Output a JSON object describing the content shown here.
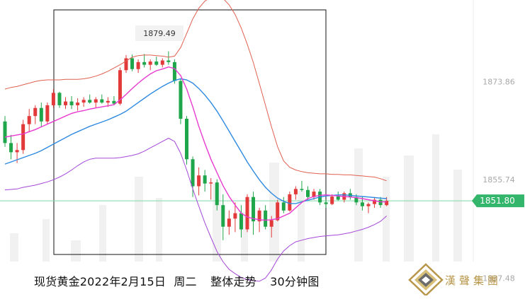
{
  "chart_data": {
    "type": "candlestick",
    "title": "",
    "xlabel": "",
    "ylabel": "",
    "ylim": [
      1834.0,
      1889.0
    ],
    "price_ticks": [
      1873.86,
      1855.74,
      1837.48
    ],
    "peak_label": 1879.49,
    "last_price": 1851.8,
    "colors": {
      "up": "#e23a3a",
      "down": "#1fa54a",
      "bollinger": "#e06050",
      "bollinger_lower": "#a448d8",
      "ma_fast": "#e83ad0",
      "ma_slow": "#2f8ae0",
      "last_price_line": "#7fd9a6",
      "last_price_box": "#33b56b",
      "highlight_box": "#111111"
    },
    "candles": [
      [
        1866.5,
        1867.5,
        1861.8,
        1862.5
      ],
      [
        1862.5,
        1864.0,
        1859.5,
        1860.8
      ],
      [
        1860.8,
        1862.5,
        1858.8,
        1861.2
      ],
      [
        1861.2,
        1866.8,
        1860.5,
        1866.0
      ],
      [
        1866.0,
        1868.8,
        1864.5,
        1867.5
      ],
      [
        1867.5,
        1869.5,
        1866.0,
        1869.0
      ],
      [
        1869.0,
        1870.0,
        1865.5,
        1866.5
      ],
      [
        1866.5,
        1870.0,
        1866.0,
        1869.5
      ],
      [
        1869.5,
        1872.5,
        1869.0,
        1871.8
      ],
      [
        1871.8,
        1872.0,
        1869.0,
        1869.5
      ],
      [
        1869.5,
        1871.0,
        1868.8,
        1870.2
      ],
      [
        1870.2,
        1871.2,
        1868.8,
        1869.5
      ],
      [
        1869.5,
        1870.8,
        1868.5,
        1870.0
      ],
      [
        1870.0,
        1871.0,
        1869.2,
        1870.5
      ],
      [
        1870.5,
        1871.5,
        1869.8,
        1870.0
      ],
      [
        1870.0,
        1871.0,
        1869.0,
        1870.6
      ],
      [
        1870.6,
        1871.5,
        1869.8,
        1870.0
      ],
      [
        1870.0,
        1871.0,
        1869.2,
        1870.3
      ],
      [
        1870.3,
        1871.2,
        1869.5,
        1869.8
      ],
      [
        1869.8,
        1876.5,
        1869.5,
        1876.0
      ],
      [
        1876.0,
        1878.8,
        1875.5,
        1878.2
      ],
      [
        1878.2,
        1878.9,
        1875.8,
        1876.2
      ],
      [
        1876.2,
        1878.0,
        1875.5,
        1877.5
      ],
      [
        1877.5,
        1879.0,
        1876.5,
        1877.0
      ],
      [
        1877.0,
        1878.0,
        1876.0,
        1877.6
      ],
      [
        1877.6,
        1878.5,
        1876.8,
        1877.0
      ],
      [
        1877.0,
        1878.2,
        1876.5,
        1877.8
      ],
      [
        1877.8,
        1879.49,
        1877.0,
        1877.5
      ],
      [
        1877.5,
        1878.0,
        1873.5,
        1874.0
      ],
      [
        1874.0,
        1874.5,
        1866.0,
        1867.0
      ],
      [
        1867.0,
        1867.5,
        1858.5,
        1859.5
      ],
      [
        1859.5,
        1860.0,
        1852.5,
        1854.5
      ],
      [
        1854.5,
        1858.0,
        1852.8,
        1856.5
      ],
      [
        1856.5,
        1857.5,
        1853.5,
        1855.0
      ],
      [
        1855.0,
        1856.0,
        1852.0,
        1855.2
      ],
      [
        1855.2,
        1855.8,
        1850.0,
        1851.0
      ],
      [
        1851.0,
        1853.0,
        1844.5,
        1847.0
      ],
      [
        1847.0,
        1850.0,
        1845.5,
        1848.5
      ],
      [
        1848.5,
        1851.5,
        1846.0,
        1849.5
      ],
      [
        1849.5,
        1851.0,
        1845.0,
        1846.5
      ],
      [
        1846.5,
        1853.0,
        1846.0,
        1852.5
      ],
      [
        1852.5,
        1853.5,
        1845.5,
        1848.0
      ],
      [
        1848.0,
        1850.5,
        1846.0,
        1850.0
      ],
      [
        1850.0,
        1851.0,
        1846.5,
        1847.0
      ],
      [
        1847.0,
        1849.0,
        1845.0,
        1848.2
      ],
      [
        1848.2,
        1852.0,
        1848.0,
        1851.5
      ],
      [
        1851.5,
        1852.5,
        1849.5,
        1850.0
      ],
      [
        1850.0,
        1853.5,
        1849.8,
        1853.0
      ],
      [
        1853.0,
        1854.5,
        1852.0,
        1854.0
      ],
      [
        1854.0,
        1855.5,
        1853.5,
        1853.8
      ],
      [
        1853.8,
        1854.5,
        1852.0,
        1852.5
      ],
      [
        1852.5,
        1854.0,
        1852.0,
        1853.5
      ],
      [
        1853.5,
        1854.0,
        1851.0,
        1851.5
      ],
      [
        1851.5,
        1852.0,
        1850.5,
        1851.2
      ],
      [
        1851.2,
        1853.0,
        1851.0,
        1852.6
      ],
      [
        1852.6,
        1853.5,
        1851.8,
        1852.0
      ],
      [
        1852.0,
        1853.5,
        1851.5,
        1853.2
      ],
      [
        1853.2,
        1854.0,
        1852.0,
        1852.5
      ],
      [
        1852.5,
        1853.0,
        1851.0,
        1851.5
      ],
      [
        1851.5,
        1852.5,
        1850.0,
        1850.8
      ],
      [
        1850.8,
        1851.5,
        1849.5,
        1851.2
      ],
      [
        1851.2,
        1852.5,
        1850.5,
        1852.0
      ],
      [
        1852.0,
        1852.5,
        1850.5,
        1851.0
      ],
      [
        1851.0,
        1852.5,
        1850.8,
        1851.8
      ]
    ],
    "bollinger_upper": [
      1872.5,
      1872.8,
      1873.0,
      1873.3,
      1873.6,
      1873.9,
      1874.1,
      1874.2,
      1874.2,
      1874.2,
      1874.3,
      1874.3,
      1874.3,
      1874.4,
      1874.6,
      1874.9,
      1875.3,
      1875.8,
      1876.4,
      1877.0,
      1877.7,
      1878.4,
      1878.7,
      1878.8,
      1878.8,
      1878.7,
      1878.6,
      1878.4,
      1878.6,
      1880.2,
      1882.8,
      1885.5,
      1887.5,
      1888.8,
      1889.5,
      1889.8,
      1889.3,
      1888.1,
      1886.3,
      1883.8,
      1880.8,
      1877.4,
      1873.5,
      1869.5,
      1865.5,
      1861.8,
      1859.2,
      1858.0,
      1857.5,
      1857.2,
      1857.0,
      1856.9,
      1856.8,
      1856.8,
      1856.7,
      1856.7,
      1856.6,
      1856.6,
      1856.5,
      1856.4,
      1856.3,
      1856.2,
      1855.9,
      1855.5
    ],
    "bollinger_lower": [
      1853.8,
      1853.9,
      1854.0,
      1854.3,
      1854.5,
      1854.7,
      1855.0,
      1855.3,
      1855.7,
      1856.2,
      1856.8,
      1857.5,
      1858.3,
      1859.0,
      1859.5,
      1859.7,
      1859.7,
      1859.7,
      1859.7,
      1859.8,
      1860.0,
      1860.2,
      1860.5,
      1861.0,
      1861.6,
      1862.2,
      1862.8,
      1863.4,
      1862.8,
      1860.6,
      1857.5,
      1854.0,
      1850.8,
      1847.7,
      1845.0,
      1842.4,
      1840.5,
      1839.1,
      1838.3,
      1837.6,
      1837.2,
      1837.0,
      1836.9,
      1837.5,
      1839.0,
      1841.0,
      1842.5,
      1843.5,
      1844.2,
      1844.5,
      1844.8,
      1845.0,
      1845.2,
      1845.3,
      1845.4,
      1845.5,
      1845.7,
      1845.9,
      1846.2,
      1846.5,
      1846.9,
      1847.4,
      1848.0,
      1849.0
    ],
    "ma_fast": [
      1863.6,
      1863.8,
      1864.0,
      1864.2,
      1864.6,
      1865.0,
      1865.5,
      1866.0,
      1866.5,
      1867.0,
      1867.5,
      1868.0,
      1868.3,
      1868.5,
      1868.8,
      1869.0,
      1869.2,
      1869.4,
      1869.6,
      1870.5,
      1871.5,
      1872.6,
      1873.6,
      1874.5,
      1875.3,
      1875.9,
      1876.2,
      1876.6,
      1876.3,
      1875.0,
      1872.5,
      1869.2,
      1865.6,
      1862.4,
      1859.5,
      1857.0,
      1854.6,
      1852.6,
      1851.0,
      1849.5,
      1848.8,
      1848.5,
      1848.3,
      1848.2,
      1848.3,
      1848.5,
      1849.0,
      1849.5,
      1850.5,
      1851.5,
      1852.2,
      1852.6,
      1852.8,
      1852.9,
      1852.8,
      1852.7,
      1852.6,
      1852.5,
      1852.4,
      1852.2,
      1852.0,
      1851.8,
      1851.6,
      1851.6
    ],
    "ma_slow": [
      1858.6,
      1859.0,
      1859.4,
      1859.8,
      1860.2,
      1860.6,
      1861.1,
      1861.7,
      1862.3,
      1862.9,
      1863.5,
      1864.1,
      1864.6,
      1865.1,
      1865.6,
      1866.0,
      1866.4,
      1866.8,
      1867.3,
      1867.8,
      1868.4,
      1869.2,
      1870.0,
      1870.8,
      1871.6,
      1872.3,
      1873.0,
      1873.6,
      1874.1,
      1874.4,
      1874.2,
      1873.6,
      1872.6,
      1871.4,
      1870.0,
      1868.4,
      1866.6,
      1864.7,
      1862.8,
      1860.9,
      1859.0,
      1857.3,
      1855.7,
      1854.3,
      1853.2,
      1852.3,
      1851.7,
      1851.3,
      1851.3,
      1851.6,
      1851.9,
      1852.2,
      1852.5,
      1852.7,
      1852.8,
      1852.9,
      1852.9,
      1852.8,
      1852.7,
      1852.6,
      1852.5,
      1852.4,
      1852.3,
      1852.2
    ]
  },
  "caption": {
    "title": "现货黄金2022年2月15日",
    "weekday": "周二",
    "subject": "整体走势",
    "timeframe": "30分钟图"
  },
  "logo": {
    "text": "漢聲集團"
  }
}
